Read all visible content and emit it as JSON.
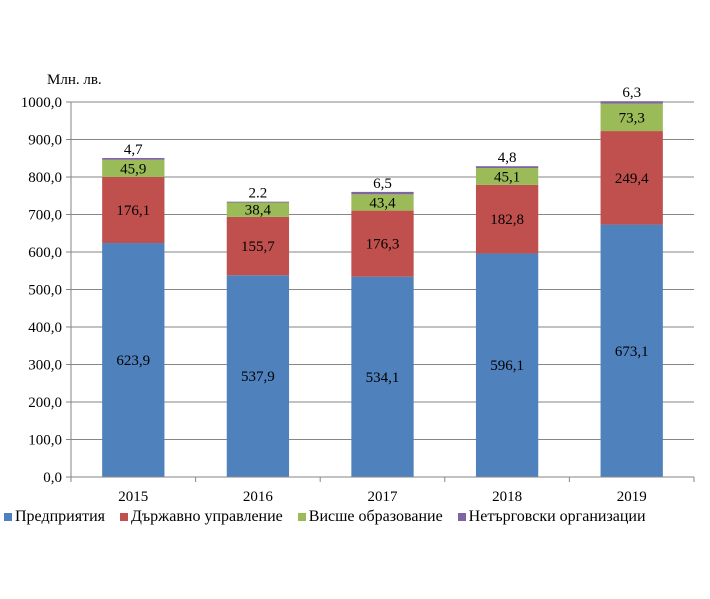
{
  "chart_data": {
    "type": "bar",
    "stacked": true,
    "title": "",
    "ylabel": "Млн. лв.",
    "xlabel": "",
    "ylim": [
      0,
      1000
    ],
    "ytick_step": 100,
    "ytick_labels": [
      "0,0",
      "100,0",
      "200,0",
      "300,0",
      "400,0",
      "500,0",
      "600,0",
      "700,0",
      "800,0",
      "900,0",
      "1000,0"
    ],
    "grid": true,
    "legend_position": "bottom",
    "categories": [
      "2015",
      "2016",
      "2017",
      "2018",
      "2019"
    ],
    "series": [
      {
        "name": "Предприятия",
        "color": "#4F81BD",
        "values": [
          623.9,
          537.9,
          534.1,
          596.1,
          673.1
        ],
        "labels": [
          "623,9",
          "537,9",
          "534,1",
          "596,1",
          "673,1"
        ]
      },
      {
        "name": "Държавно управление",
        "color": "#C0504D",
        "values": [
          176.1,
          155.7,
          176.3,
          182.8,
          249.4
        ],
        "labels": [
          "176,1",
          "155,7",
          "176,3",
          "182,8",
          "249,4"
        ]
      },
      {
        "name": "Висше образование",
        "color": "#9BBB59",
        "values": [
          45.9,
          38.4,
          43.4,
          45.1,
          73.3
        ],
        "labels": [
          "45,9",
          "38,4",
          "43,4",
          "45,1",
          "73,3"
        ]
      },
      {
        "name": "Нетърговски организации",
        "color": "#8064A2",
        "values": [
          4.7,
          2.2,
          6.5,
          4.8,
          6.3
        ],
        "labels": [
          "4,7",
          "2.2",
          "6,5",
          "4,8",
          "6,3"
        ]
      }
    ]
  }
}
